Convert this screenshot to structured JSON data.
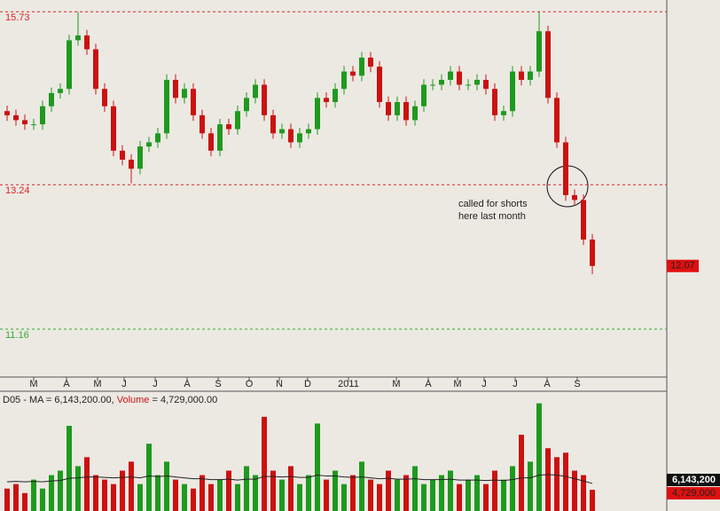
{
  "chart_data": [
    {
      "type": "candlestick",
      "open": [
        14.3,
        14.24,
        14.17,
        14.11,
        14.11,
        14.37,
        14.56,
        14.62,
        15.32,
        15.39,
        15.19,
        14.62,
        14.37,
        13.73,
        13.6,
        13.47,
        13.79,
        13.85,
        13.98,
        14.75,
        14.49,
        14.62,
        14.24,
        13.98,
        13.73,
        14.11,
        14.04,
        14.3,
        14.49,
        14.68,
        14.24,
        13.98,
        14.04,
        13.85,
        13.98,
        14.04,
        14.49,
        14.43,
        14.62,
        14.87,
        14.81,
        15.07,
        14.94,
        14.43,
        14.24,
        14.43,
        14.17,
        14.37,
        14.68,
        14.68,
        14.75,
        14.87,
        14.68,
        14.68,
        14.75,
        14.62,
        14.24,
        14.3,
        14.87,
        14.75,
        14.87,
        15.45,
        14.49,
        13.85,
        13.09,
        13.02,
        12.45
      ],
      "high": [
        14.38,
        14.32,
        14.25,
        14.19,
        14.45,
        14.64,
        14.7,
        15.4,
        15.73,
        15.47,
        15.27,
        14.7,
        14.45,
        13.81,
        13.68,
        13.87,
        13.93,
        14.06,
        14.83,
        14.83,
        14.7,
        14.7,
        14.32,
        14.06,
        14.19,
        14.19,
        14.38,
        14.57,
        14.76,
        14.76,
        14.32,
        14.12,
        14.12,
        14.06,
        14.12,
        14.57,
        14.57,
        14.7,
        14.95,
        14.95,
        15.15,
        15.15,
        15.02,
        14.51,
        14.51,
        14.51,
        14.45,
        14.76,
        14.76,
        14.83,
        14.95,
        14.95,
        14.76,
        14.83,
        14.83,
        14.7,
        14.38,
        14.95,
        14.95,
        14.95,
        15.73,
        15.53,
        14.57,
        13.93,
        13.17,
        13.1,
        12.53
      ],
      "low": [
        14.16,
        14.09,
        14.03,
        14.03,
        14.03,
        14.29,
        14.48,
        14.54,
        15.24,
        15.11,
        14.54,
        14.29,
        13.65,
        13.52,
        13.26,
        13.39,
        13.71,
        13.77,
        13.9,
        14.41,
        14.41,
        14.16,
        13.9,
        13.65,
        13.65,
        13.96,
        13.96,
        14.22,
        14.41,
        14.16,
        13.9,
        13.9,
        13.77,
        13.77,
        13.9,
        13.96,
        14.35,
        14.35,
        14.54,
        14.73,
        14.73,
        14.86,
        14.35,
        14.16,
        14.16,
        14.09,
        14.09,
        14.29,
        14.6,
        14.6,
        14.67,
        14.6,
        14.6,
        14.6,
        14.54,
        14.16,
        14.16,
        14.22,
        14.67,
        14.67,
        14.79,
        14.41,
        13.77,
        13.01,
        12.94,
        12.37,
        11.95
      ],
      "close": [
        14.24,
        14.17,
        14.11,
        14.11,
        14.37,
        14.56,
        14.62,
        15.32,
        15.39,
        15.19,
        14.62,
        14.37,
        13.73,
        13.6,
        13.47,
        13.79,
        13.85,
        13.98,
        14.75,
        14.49,
        14.62,
        14.24,
        13.98,
        13.73,
        14.11,
        14.04,
        14.3,
        14.49,
        14.68,
        14.24,
        13.98,
        14.04,
        13.85,
        13.98,
        14.04,
        14.49,
        14.43,
        14.62,
        14.87,
        14.81,
        15.07,
        14.94,
        14.43,
        14.24,
        14.43,
        14.17,
        14.37,
        14.68,
        14.68,
        14.75,
        14.87,
        14.68,
        14.68,
        14.75,
        14.62,
        14.24,
        14.3,
        14.87,
        14.75,
        14.87,
        15.45,
        14.49,
        13.85,
        13.09,
        13.02,
        12.45,
        12.07
      ],
      "up_color": "#1e9a1e",
      "down_color": "#cc1111",
      "ylim": [
        10.47,
        15.9
      ],
      "xlim": [
        -0.8,
        74.4
      ],
      "xticks": [
        {
          "value": 3,
          "label": "M"
        },
        {
          "value": 6.7,
          "label": "A"
        },
        {
          "value": 10.2,
          "label": "M"
        },
        {
          "value": 13.2,
          "label": "J"
        },
        {
          "value": 16.7,
          "label": "J"
        },
        {
          "value": 20.3,
          "label": "A"
        },
        {
          "value": 23.8,
          "label": "S"
        },
        {
          "value": 27.3,
          "label": "O"
        },
        {
          "value": 30.7,
          "label": "N"
        },
        {
          "value": 33.9,
          "label": "D"
        },
        {
          "value": 38.5,
          "label": "2011"
        },
        {
          "value": 43.9,
          "label": "M"
        },
        {
          "value": 47.5,
          "label": "A"
        },
        {
          "value": 50.8,
          "label": "M"
        },
        {
          "value": 53.8,
          "label": "J"
        },
        {
          "value": 57.3,
          "label": "J"
        },
        {
          "value": 60.9,
          "label": "A"
        },
        {
          "value": 64.3,
          "label": "S"
        }
      ],
      "levels": [
        {
          "value": 15.73,
          "color": "#dd2222"
        },
        {
          "value": 13.24,
          "color": "#dd2222"
        },
        {
          "value": 11.16,
          "color": "#33aa33"
        }
      ],
      "annotation": [
        "called for shorts",
        "here last month"
      ]
    },
    {
      "type": "bar",
      "title": "D05 - MA = 6,143,200.00,",
      "series_name": "Volume",
      "series_label": "= 4,729,000.00",
      "ma_label": "6,143,200",
      "last_label": "4,729,000",
      "values": [
        5000000,
        6000000,
        4000000,
        7000000,
        5000000,
        8000000,
        9000000,
        19000000,
        10000000,
        12000000,
        8000000,
        7000000,
        6000000,
        9000000,
        11000000,
        6000000,
        15000000,
        8000000,
        11000000,
        7000000,
        6000000,
        5000000,
        8000000,
        6000000,
        7000000,
        9000000,
        6000000,
        10000000,
        8000000,
        21000000,
        9000000,
        7000000,
        10000000,
        6000000,
        8000000,
        19500000,
        7000000,
        9000000,
        6000000,
        8000000,
        11000000,
        7000000,
        6000000,
        9000000,
        7000000,
        8000000,
        10000000,
        6000000,
        7000000,
        8000000,
        9000000,
        6000000,
        7000000,
        8000000,
        6000000,
        9000000,
        7000000,
        10000000,
        17000000,
        11000000,
        24000000,
        14000000,
        12000000,
        13000000,
        9000000,
        8000000,
        4729000
      ],
      "ma_values": [
        6500000,
        6600000,
        6500000,
        6600000,
        6500000,
        6700000,
        6800000,
        7300000,
        7400000,
        7600000,
        7600000,
        7500000,
        7400000,
        7500000,
        7600000,
        7400000,
        7800000,
        7700000,
        7800000,
        7600000,
        7400000,
        7200000,
        7200000,
        7000000,
        7000000,
        7100000,
        6900000,
        7100000,
        7100000,
        7700000,
        7700000,
        7600000,
        7700000,
        7500000,
        7500000,
        8000000,
        7800000,
        7800000,
        7600000,
        7500000,
        7600000,
        7400000,
        7200000,
        7300000,
        7100000,
        7100000,
        7200000,
        7000000,
        7000000,
        7000000,
        7100000,
        6900000,
        6900000,
        6900000,
        6800000,
        6900000,
        6800000,
        7000000,
        7400000,
        7400000,
        8000000,
        8100000,
        8000000,
        7700000,
        7200000,
        6700000,
        6143200
      ],
      "ylim": [
        0,
        26700000
      ],
      "up_color": "#1e9a1e",
      "down_color": "#cc1111",
      "ma_color": "#222222"
    }
  ]
}
